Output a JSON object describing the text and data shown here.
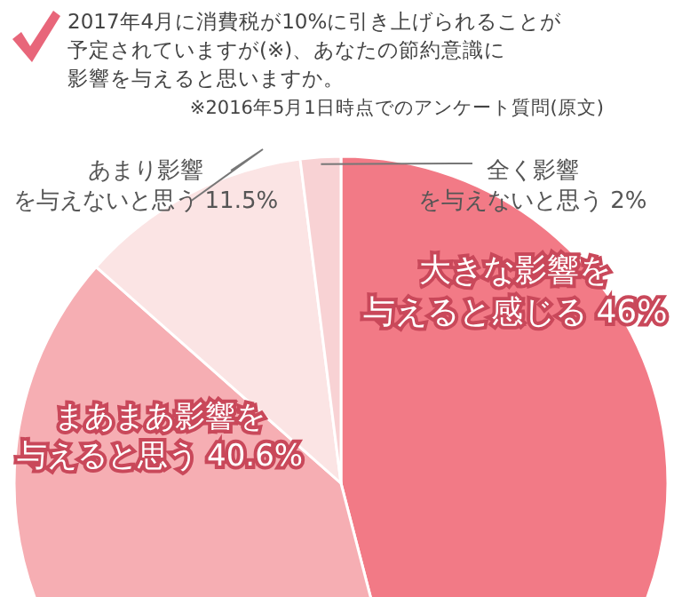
{
  "chart_data": {
    "type": "pie",
    "title": "2017年4月に消費税が10%に引き上げられることが予定されていますが(※)、あなたの節約意識に影響を与えると思いますか。",
    "annotations": [
      "※2016年5月1日時点でのアンケート質問(原文)"
    ],
    "categories": [
      "大きな影響を与えると感じる",
      "まあまあ影響を与えると思う",
      "あまり影響を与えないと思う",
      "全く影響を与えないと思う"
    ],
    "values": [
      46,
      40.6,
      11.5,
      2
    ],
    "colors": [
      "#f27a86",
      "#f6aeb3",
      "#fbe4e4",
      "#f8d2d4"
    ],
    "value_labels": [
      "46%",
      "40.6%",
      "11.5%",
      "2%"
    ]
  }
}
